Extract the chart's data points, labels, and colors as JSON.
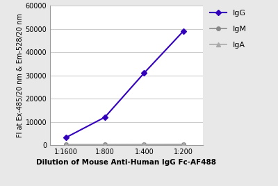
{
  "x_labels": [
    "1:1600",
    "1:800",
    "1:400",
    "1:200"
  ],
  "x_positions": [
    1,
    2,
    3,
    4
  ],
  "IgG_values": [
    3200,
    12000,
    31000,
    49000
  ],
  "IgM_values": [
    200,
    200,
    250,
    350
  ],
  "IgA_values": [
    150,
    150,
    200,
    300
  ],
  "IgG_color": "#3300bb",
  "IgM_color": "#888888",
  "IgA_color": "#aaaaaa",
  "ylabel": "Fl at Ex-485/20 nm & Em-528/20 nm",
  "xlabel": "Dilution of Mouse Anti-Human IgG Fc-AF488",
  "ylim": [
    0,
    60000
  ],
  "yticks": [
    0,
    10000,
    20000,
    30000,
    40000,
    50000,
    60000
  ],
  "axis_fontsize": 7.5,
  "legend_fontsize": 8,
  "tick_fontsize": 7,
  "bg_color": "#e8e8e8",
  "plot_bg_color": "#ffffff"
}
